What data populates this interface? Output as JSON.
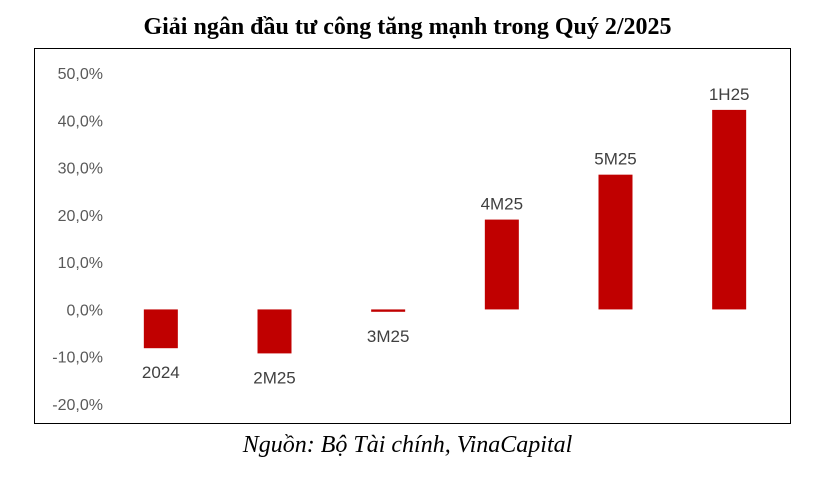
{
  "chart_data": {
    "type": "bar",
    "title": "Giải ngân đầu tư công tăng mạnh trong Quý 2/2025",
    "categories": [
      "2024",
      "2M25",
      "3M25",
      "4M25",
      "5M25",
      "1H25"
    ],
    "values": [
      -8.2,
      -9.3,
      -0.5,
      19.0,
      28.5,
      42.2
    ],
    "ylim": [
      -20,
      50
    ],
    "yticks": [
      50,
      40,
      30,
      20,
      10,
      0,
      -10,
      -20
    ],
    "ytick_labels": [
      "50,0%",
      "40,0%",
      "30,0%",
      "20,0%",
      "10,0%",
      "0,0%",
      "-10,0%",
      "-20,0%"
    ],
    "xlabel": "",
    "ylabel": "",
    "bar_color": "#C00000",
    "grid": false,
    "legend": "none"
  },
  "source": "Nguồn: Bộ Tài chính, VinaCapital"
}
